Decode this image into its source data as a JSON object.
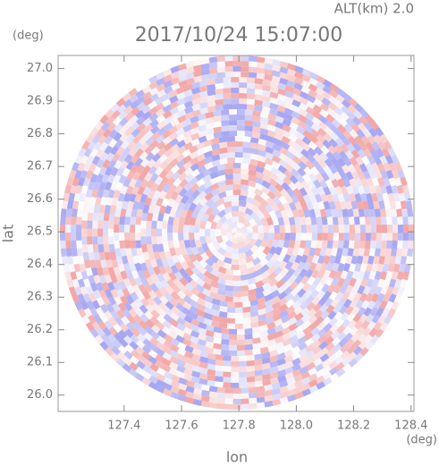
{
  "chart_data": {
    "type": "radar-ppi",
    "title": "2017/10/24 15:07:00",
    "subtitle": "ALT(km) 2.0",
    "x_label": "lon",
    "y_label": "lat",
    "x_unit": "(deg)",
    "y_unit": "(deg)",
    "xlim": [
      127.17,
      128.41
    ],
    "ylim": [
      25.95,
      27.04
    ],
    "xticks": [
      127.4,
      127.6,
      127.8,
      {
        "value": 128,
        "label": "128.0"
      },
      128.2,
      128.4
    ],
    "yticks": [
      {
        "value": 26,
        "label": "26.0"
      },
      26.1,
      26.2,
      26.3,
      26.4,
      26.5,
      26.6,
      26.7,
      26.8,
      26.9,
      {
        "value": 27,
        "label": "27.0"
      }
    ],
    "colors": [
      "#f2a8a8",
      "#ffffff",
      "#a8a8f2"
    ]
  }
}
